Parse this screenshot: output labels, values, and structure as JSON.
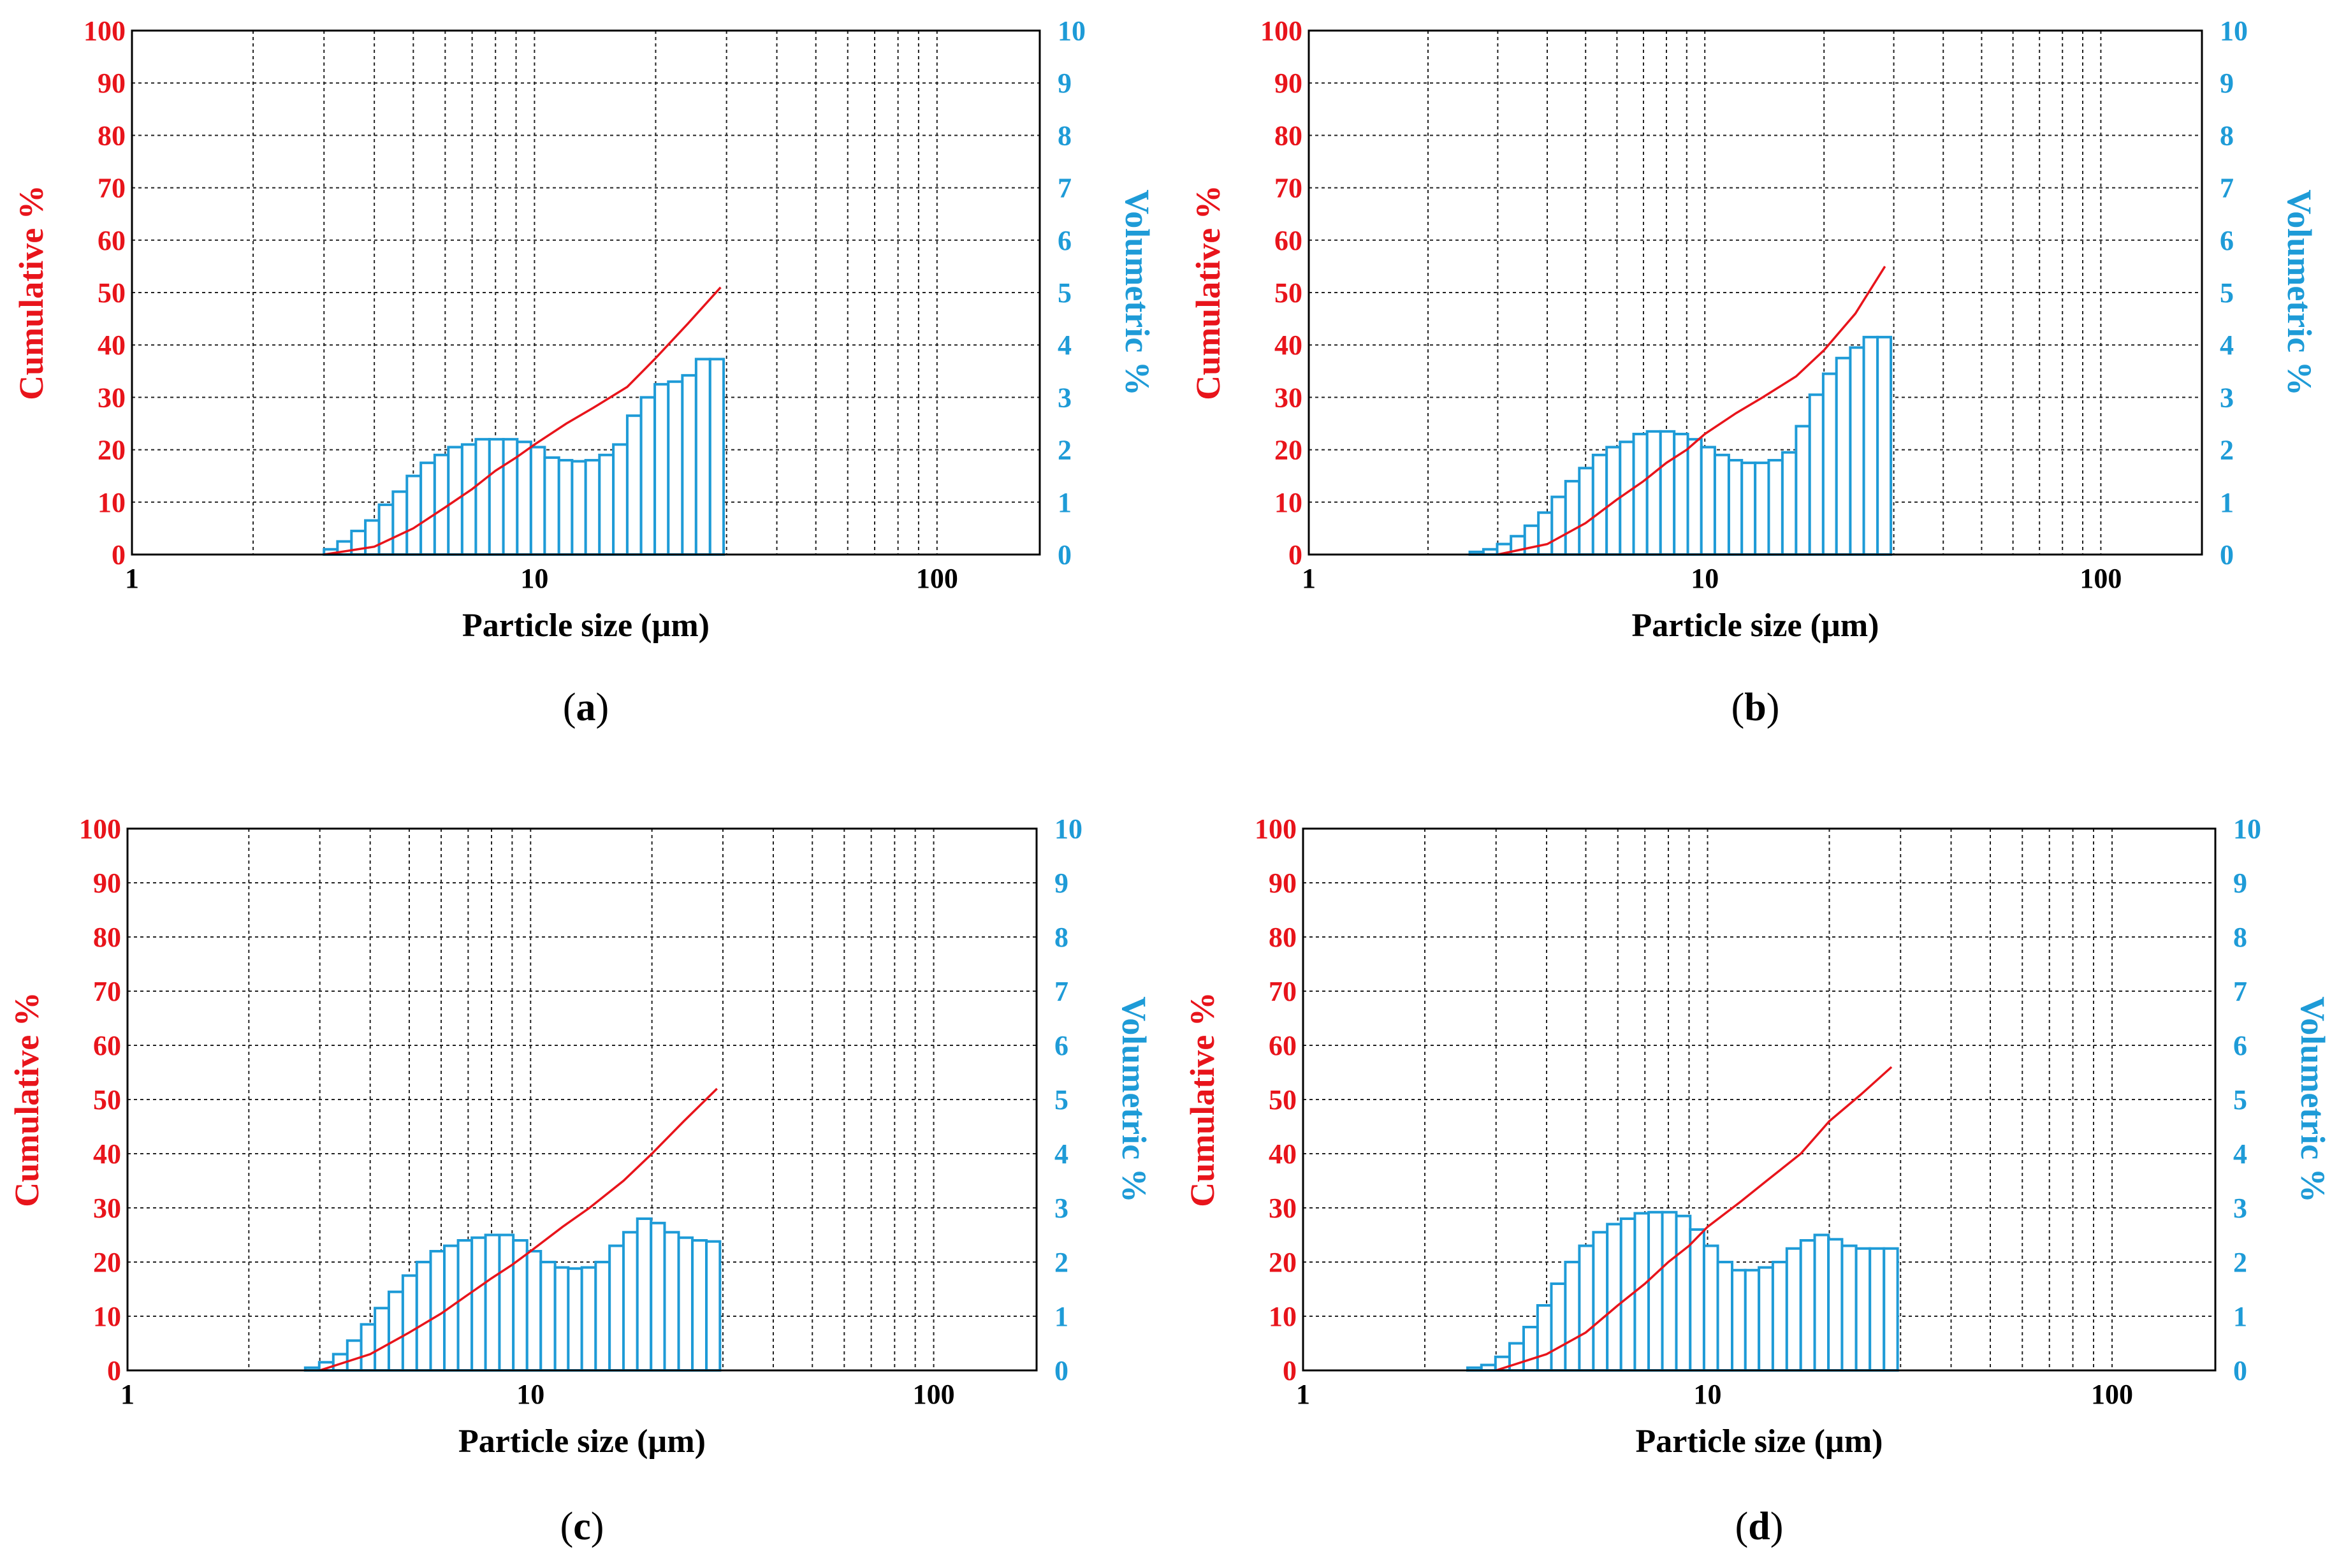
{
  "colors": {
    "cumulative": "#e8141b",
    "volumetric": "#1e9bd7",
    "grid": "#222222"
  },
  "chart_data": [
    {
      "type": "bar",
      "panel_label": "(a)",
      "panel_letter": "a",
      "xlabel": "Particle size (µm)",
      "ylabel_left": "Cumulative %",
      "ylabel_right": "Volumetric %",
      "x_scale": "log",
      "xlim": [
        1,
        180
      ],
      "x_ticks": [
        "1",
        "10",
        "100"
      ],
      "ylim_left": [
        0,
        100
      ],
      "ylim_right": [
        0,
        10
      ],
      "y_ticks_left": [
        "0",
        "10",
        "20",
        "30",
        "40",
        "50",
        "60",
        "70",
        "80",
        "90",
        "100"
      ],
      "y_ticks_right": [
        "0",
        "1",
        "2",
        "3",
        "4",
        "5",
        "6",
        "7",
        "8",
        "9",
        "10"
      ],
      "bin_edges": [
        3.0,
        3.24,
        3.51,
        3.8,
        4.11,
        4.45,
        4.82,
        5.22,
        5.65,
        6.11,
        6.61,
        7.15,
        7.73,
        8.37,
        9.06,
        9.8,
        10.6,
        11.5,
        12.4,
        13.4,
        14.5,
        15.7,
        17.0,
        18.4,
        19.9,
        21.5,
        23.3,
        25.2,
        27.3,
        29.5
      ],
      "volumetric_values": [
        0.1,
        0.25,
        0.45,
        0.65,
        0.95,
        1.2,
        1.5,
        1.75,
        1.9,
        2.05,
        2.1,
        2.2,
        2.2,
        2.2,
        2.15,
        2.05,
        1.85,
        1.8,
        1.78,
        1.8,
        1.9,
        2.1,
        2.65,
        3.0,
        3.25,
        3.3,
        3.42,
        3.73,
        3.73
      ],
      "cumulative": {
        "x": [
          3.0,
          4.0,
          5.0,
          6.0,
          7.0,
          8.0,
          9.0,
          10.0,
          12.0,
          14.0,
          17.0,
          20.0,
          24.0,
          29.0
        ],
        "y": [
          0,
          1.5,
          5,
          9,
          12.5,
          16,
          18.5,
          21,
          25,
          28,
          32,
          37.5,
          44,
          51
        ]
      }
    },
    {
      "type": "bar",
      "panel_label": "(b)",
      "panel_letter": "b",
      "xlabel": "Particle size (µm)",
      "ylabel_left": "Cumulative %",
      "ylabel_right": "Volumetric %",
      "x_scale": "log",
      "xlim": [
        1,
        180
      ],
      "x_ticks": [
        "1",
        "10",
        "100"
      ],
      "ylim_left": [
        0,
        100
      ],
      "ylim_right": [
        0,
        10
      ],
      "y_ticks_left": [
        "0",
        "10",
        "20",
        "30",
        "40",
        "50",
        "60",
        "70",
        "80",
        "90",
        "100"
      ],
      "y_ticks_right": [
        "0",
        "1",
        "2",
        "3",
        "4",
        "5",
        "6",
        "7",
        "8",
        "9",
        "10"
      ],
      "bin_edges": [
        2.55,
        2.76,
        2.99,
        3.24,
        3.51,
        3.8,
        4.11,
        4.45,
        4.82,
        5.22,
        5.65,
        6.11,
        6.61,
        7.15,
        7.73,
        8.37,
        9.06,
        9.8,
        10.6,
        11.5,
        12.4,
        13.4,
        14.5,
        15.7,
        17.0,
        18.4,
        19.9,
        21.5,
        23.3,
        25.2,
        27.3,
        29.5
      ],
      "volumetric_values": [
        0.05,
        0.1,
        0.2,
        0.35,
        0.55,
        0.8,
        1.1,
        1.4,
        1.65,
        1.9,
        2.05,
        2.15,
        2.3,
        2.35,
        2.35,
        2.3,
        2.2,
        2.05,
        1.9,
        1.8,
        1.75,
        1.75,
        1.8,
        1.95,
        2.45,
        3.05,
        3.45,
        3.75,
        3.95,
        4.15,
        4.15
      ],
      "cumulative": {
        "x": [
          3.0,
          4.0,
          5.0,
          6.0,
          7.0,
          8.0,
          9.0,
          10.0,
          12.0,
          14.0,
          17.0,
          20.0,
          24.0,
          28.5
        ],
        "y": [
          0,
          2,
          6,
          10.5,
          14,
          17.5,
          20,
          23,
          27,
          30,
          34,
          39,
          46,
          55
        ]
      }
    },
    {
      "type": "bar",
      "panel_label": "(c)",
      "panel_letter": "c",
      "xlabel": "Particle size (µm)",
      "ylabel_left": "Cumulative %",
      "ylabel_right": "Volumetric %",
      "x_scale": "log",
      "xlim": [
        1,
        180
      ],
      "x_ticks": [
        "1",
        "10",
        "100"
      ],
      "ylim_left": [
        0,
        100
      ],
      "ylim_right": [
        0,
        10
      ],
      "y_ticks_left": [
        "0",
        "10",
        "20",
        "30",
        "40",
        "50",
        "60",
        "70",
        "80",
        "90",
        "100"
      ],
      "y_ticks_right": [
        "0",
        "1",
        "2",
        "3",
        "4",
        "5",
        "6",
        "7",
        "8",
        "9",
        "10"
      ],
      "bin_edges": [
        2.76,
        2.99,
        3.24,
        3.51,
        3.8,
        4.11,
        4.45,
        4.82,
        5.22,
        5.65,
        6.11,
        6.61,
        7.15,
        7.73,
        8.37,
        9.06,
        9.8,
        10.6,
        11.5,
        12.4,
        13.4,
        14.5,
        15.7,
        17.0,
        18.4,
        19.9,
        21.5,
        23.3,
        25.2,
        27.3,
        29.5
      ],
      "volumetric_values": [
        0.05,
        0.15,
        0.3,
        0.55,
        0.85,
        1.15,
        1.45,
        1.75,
        2.0,
        2.2,
        2.3,
        2.4,
        2.45,
        2.5,
        2.5,
        2.4,
        2.2,
        2.0,
        1.9,
        1.88,
        1.9,
        2.0,
        2.3,
        2.55,
        2.8,
        2.72,
        2.55,
        2.45,
        2.4,
        2.38
      ],
      "cumulative": {
        "x": [
          3.0,
          4.0,
          5.0,
          6.0,
          7.0,
          8.0,
          9.0,
          10.0,
          12.0,
          14.0,
          17.0,
          20.0,
          24.0,
          29.0
        ],
        "y": [
          0,
          3,
          7,
          10.5,
          14,
          17,
          19.5,
          22,
          26.5,
          30,
          35,
          40,
          46,
          52
        ]
      }
    },
    {
      "type": "bar",
      "panel_label": "(d)",
      "panel_letter": "d",
      "xlabel": "Particle size (µm)",
      "ylabel_left": "Cumulative %",
      "ylabel_right": "Volumetric %",
      "x_scale": "log",
      "xlim": [
        1,
        180
      ],
      "x_ticks": [
        "1",
        "10",
        "100"
      ],
      "ylim_left": [
        0,
        100
      ],
      "ylim_right": [
        0,
        10
      ],
      "y_ticks_left": [
        "0",
        "10",
        "20",
        "30",
        "40",
        "50",
        "60",
        "70",
        "80",
        "90",
        "100"
      ],
      "y_ticks_right": [
        "0",
        "1",
        "2",
        "3",
        "4",
        "5",
        "6",
        "7",
        "8",
        "9",
        "10"
      ],
      "bin_edges": [
        2.55,
        2.76,
        2.99,
        3.24,
        3.51,
        3.8,
        4.11,
        4.45,
        4.82,
        5.22,
        5.65,
        6.11,
        6.61,
        7.15,
        7.73,
        8.37,
        9.06,
        9.8,
        10.6,
        11.5,
        12.4,
        13.4,
        14.5,
        15.7,
        17.0,
        18.4,
        19.9,
        21.5,
        23.3,
        25.2,
        27.3,
        29.5
      ],
      "volumetric_values": [
        0.05,
        0.1,
        0.25,
        0.5,
        0.8,
        1.2,
        1.6,
        2.0,
        2.3,
        2.55,
        2.7,
        2.8,
        2.9,
        2.92,
        2.92,
        2.85,
        2.6,
        2.3,
        2.0,
        1.85,
        1.85,
        1.9,
        2.0,
        2.25,
        2.4,
        2.5,
        2.42,
        2.3,
        2.25,
        2.25,
        2.25
      ],
      "cumulative": {
        "x": [
          3.0,
          4.0,
          5.0,
          6.0,
          7.0,
          8.0,
          9.0,
          10.0,
          12.0,
          14.0,
          17.0,
          20.0,
          24.0,
          28.5
        ],
        "y": [
          0,
          3,
          7,
          12,
          16,
          20,
          23,
          26.5,
          31,
          35,
          40,
          46,
          51,
          56
        ]
      }
    }
  ]
}
